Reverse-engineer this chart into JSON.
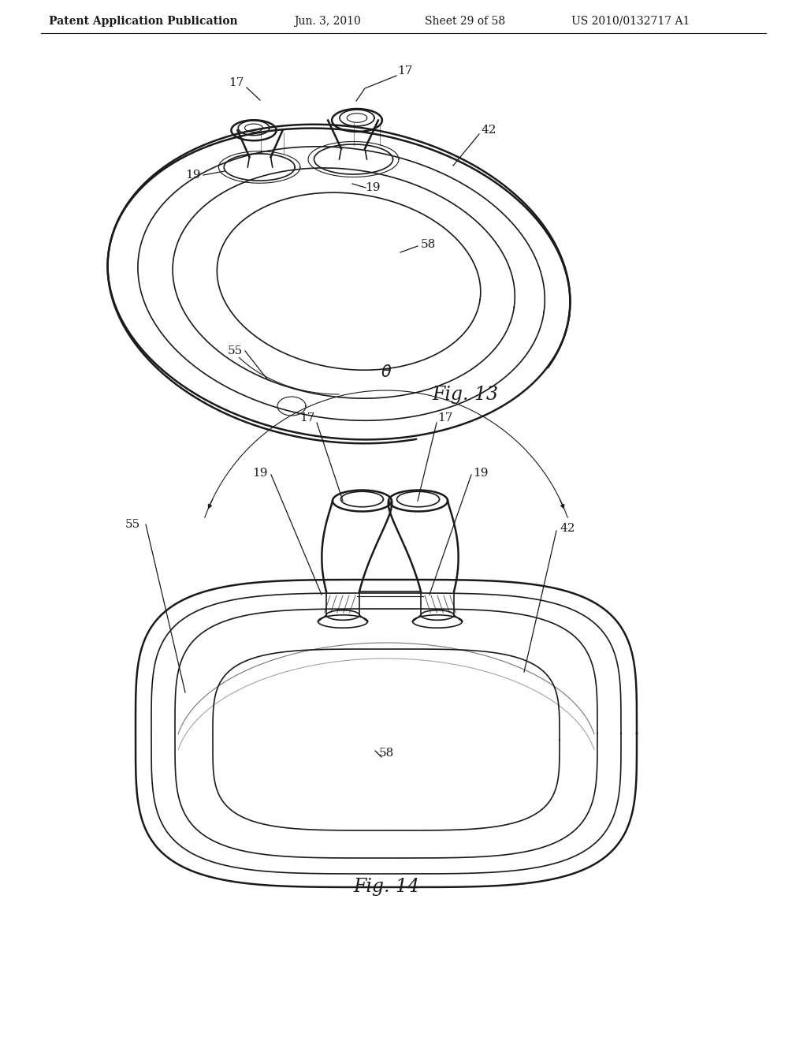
{
  "bg_color": "#ffffff",
  "line_color": "#1a1a1a",
  "header_text": "Patent Application Publication",
  "header_date": "Jun. 3, 2010",
  "header_sheet": "Sheet 29 of 58",
  "header_patent": "US 2010/0132717 A1",
  "fig13_label": "Fig. 13",
  "fig14_label": "Fig. 14"
}
